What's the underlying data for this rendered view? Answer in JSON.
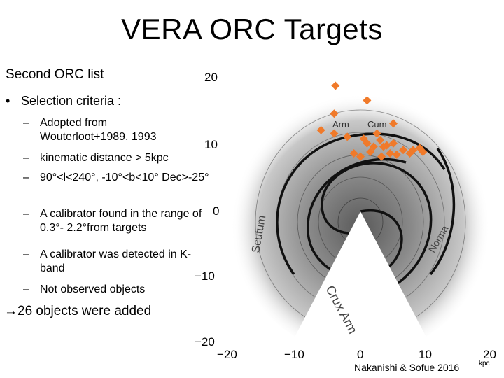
{
  "slide": {
    "title": "VERA ORC Targets",
    "subtitle": "Second ORC list",
    "bullet": "Selection criteria :",
    "criteria": [
      "Adopted from Wouterloot+1989, 1993",
      "kinematic distance > 5kpc",
      "90°<l<240°, -10°<b<10° Dec>-25°",
      "A calibrator found in the range of 0.3°- 2.2°from targets",
      "A calibrator was detected in K-band",
      "Not observed objects"
    ],
    "result": "→26 objects were added"
  },
  "figure": {
    "y_ticks": [
      "20",
      "10",
      "0",
      "−10",
      "−20"
    ],
    "x_ticks": [
      "−20",
      "−10",
      "0",
      "10",
      "20"
    ],
    "arm_labels": [
      "Arm",
      "Cum",
      "Crux Arm",
      "Scutum",
      "Norma"
    ],
    "credit": "Nakanishi & Sofue 2016",
    "unit": "kpc",
    "marker_color": "#f07a2a"
  },
  "chart_data": {
    "type": "scatter",
    "title": "",
    "xlabel": "",
    "ylabel": "",
    "xlim": [
      -20,
      20
    ],
    "ylim": [
      -20,
      20
    ],
    "unit": "kpc",
    "series": [
      {
        "marker": "diamond",
        "color": "#f07a2a",
        "x": [
          -3.8,
          1.0,
          -4.0,
          5.0,
          -6.0,
          -4.0,
          -2.0,
          0.5,
          2.5,
          1.0,
          3.0,
          3.5,
          4.0,
          6.5,
          8.0,
          9.0,
          4.5,
          5.5,
          7.5,
          -1.0,
          0.0,
          1.5,
          2.0,
          3.2,
          5.0,
          9.5
        ],
        "y": [
          19.2,
          17.0,
          15.0,
          13.5,
          12.5,
          12.0,
          11.5,
          11.2,
          12.0,
          10.5,
          11.0,
          10.0,
          10.2,
          9.5,
          9.5,
          9.8,
          9.0,
          8.8,
          9.0,
          9.0,
          8.5,
          9.2,
          10.0,
          8.5,
          10.5,
          9.2
        ]
      }
    ]
  }
}
